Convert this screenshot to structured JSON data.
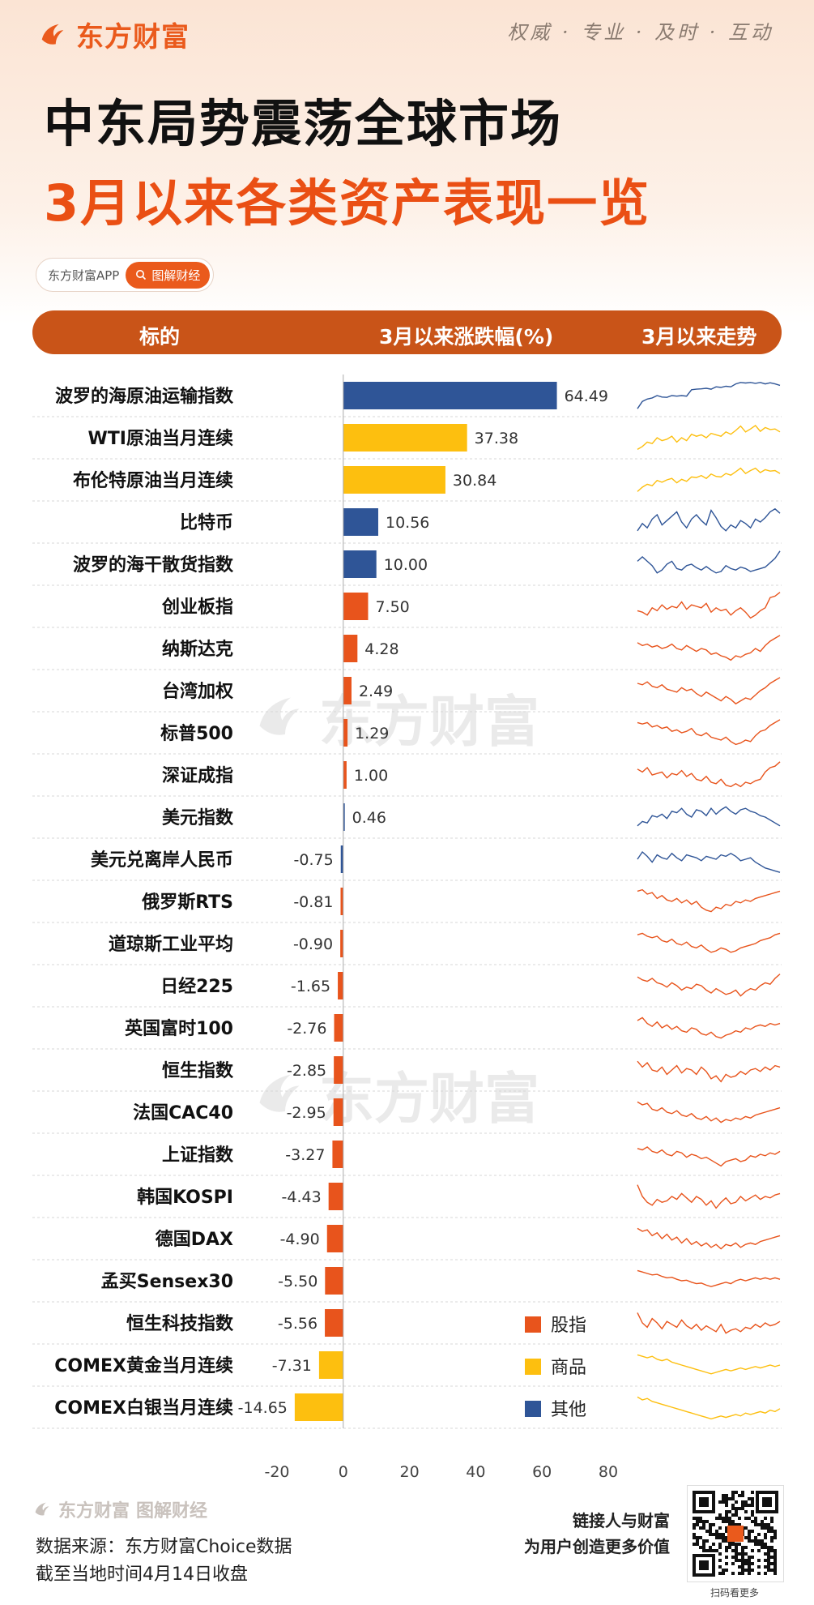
{
  "brand": {
    "logo_text": "东方财富",
    "slogan": "权威 · 专业 · 及时 · 互动"
  },
  "title": {
    "line1": "中东局势震荡全球市场",
    "line2": "3月以来各类资产表现一览"
  },
  "badge": {
    "app": "东方财富APP",
    "pill": "图解财经"
  },
  "header": {
    "col1": "标的",
    "col2": "3月以来涨跌幅(%)",
    "col3": "3月以来走势"
  },
  "watermark": "东方财富",
  "colors": {
    "stock": "#e8541c",
    "commodity": "#fdbf0f",
    "other": "#2f5597",
    "accent": "#ea5a1c"
  },
  "chart_data": {
    "type": "bar",
    "orientation": "horizontal",
    "categories": [
      "波罗的海原油运输指数",
      "WTI原油当月连续",
      "布伦特原油当月连续",
      "比特币",
      "波罗的海干散货指数",
      "创业板指",
      "纳斯达克",
      "台湾加权",
      "标普500",
      "深证成指",
      "美元指数",
      "美元兑离岸人民币",
      "俄罗斯RTS",
      "道琼斯工业平均",
      "日经225",
      "英国富时100",
      "恒生指数",
      "法国CAC40",
      "上证指数",
      "韩国KOSPI",
      "德国DAX",
      "孟买Sensex30",
      "恒生科技指数",
      "COMEX黄金当月连续",
      "COMEX白银当月连续"
    ],
    "values": [
      64.49,
      37.38,
      30.84,
      10.56,
      10.0,
      7.5,
      4.28,
      2.49,
      1.29,
      1.0,
      0.46,
      -0.75,
      -0.81,
      -0.9,
      -1.65,
      -2.76,
      -2.85,
      -2.95,
      -3.27,
      -4.43,
      -4.9,
      -5.5,
      -5.56,
      -7.31,
      -14.65
    ],
    "value_labels": [
      "64.49",
      "37.38",
      "30.84",
      "10.56",
      "10.00",
      "7.50",
      "4.28",
      "2.49",
      "1.29",
      "1.00",
      "0.46",
      "-0.75",
      "-0.81",
      "-0.90",
      "-1.65",
      "-2.76",
      "-2.85",
      "-2.95",
      "-3.27",
      "-4.43",
      "-4.90",
      "-5.50",
      "-5.56",
      "-7.31",
      "-14.65"
    ],
    "groups": [
      "other",
      "commodity",
      "commodity",
      "other",
      "other",
      "stock",
      "stock",
      "stock",
      "stock",
      "stock",
      "other",
      "other",
      "stock",
      "stock",
      "stock",
      "stock",
      "stock",
      "stock",
      "stock",
      "stock",
      "stock",
      "stock",
      "stock",
      "commodity",
      "commodity"
    ],
    "xlim": [
      -20,
      80
    ],
    "xticks": [
      "-20",
      "0",
      "20",
      "40",
      "60",
      "80"
    ],
    "legend": {
      "placement": "bottom-right",
      "items": [
        {
          "group": "stock",
          "label": "股指"
        },
        {
          "group": "commodity",
          "label": "商品"
        },
        {
          "group": "other",
          "label": "其他"
        }
      ]
    },
    "sparkline_shapes": [
      [
        0.05,
        0.3,
        0.38,
        0.42,
        0.5,
        0.45,
        0.44,
        0.5,
        0.48,
        0.5,
        0.48,
        0.7,
        0.72,
        0.73,
        0.75,
        0.72,
        0.8,
        0.78,
        0.82,
        0.8,
        0.9,
        0.95,
        0.93,
        0.95,
        0.92,
        0.95,
        0.9,
        0.94,
        0.9,
        0.85
      ],
      [
        0.1,
        0.2,
        0.35,
        0.3,
        0.5,
        0.4,
        0.45,
        0.55,
        0.35,
        0.5,
        0.4,
        0.62,
        0.55,
        0.6,
        0.5,
        0.65,
        0.6,
        0.55,
        0.7,
        0.62,
        0.75,
        0.9,
        0.7,
        0.8,
        0.92,
        0.72,
        0.85,
        0.78,
        0.8,
        0.7
      ],
      [
        0.1,
        0.25,
        0.35,
        0.3,
        0.48,
        0.42,
        0.5,
        0.55,
        0.4,
        0.52,
        0.45,
        0.6,
        0.58,
        0.65,
        0.55,
        0.7,
        0.62,
        0.6,
        0.72,
        0.66,
        0.78,
        0.9,
        0.72,
        0.82,
        0.9,
        0.75,
        0.85,
        0.8,
        0.82,
        0.72
      ],
      [
        0.2,
        0.45,
        0.3,
        0.6,
        0.75,
        0.4,
        0.55,
        0.7,
        0.85,
        0.5,
        0.3,
        0.6,
        0.75,
        0.55,
        0.4,
        0.9,
        0.65,
        0.35,
        0.2,
        0.4,
        0.3,
        0.55,
        0.45,
        0.3,
        0.6,
        0.5,
        0.65,
        0.85,
        0.95,
        0.8
      ],
      [
        0.6,
        0.75,
        0.6,
        0.45,
        0.2,
        0.3,
        0.5,
        0.6,
        0.35,
        0.3,
        0.45,
        0.5,
        0.38,
        0.3,
        0.42,
        0.3,
        0.2,
        0.25,
        0.45,
        0.35,
        0.3,
        0.4,
        0.35,
        0.25,
        0.3,
        0.35,
        0.4,
        0.55,
        0.7,
        0.95
      ],
      [
        0.35,
        0.3,
        0.2,
        0.45,
        0.35,
        0.55,
        0.4,
        0.5,
        0.45,
        0.65,
        0.4,
        0.55,
        0.5,
        0.45,
        0.6,
        0.3,
        0.45,
        0.35,
        0.4,
        0.2,
        0.35,
        0.45,
        0.3,
        0.1,
        0.2,
        0.35,
        0.45,
        0.8,
        0.85,
        0.98
      ],
      [
        0.7,
        0.6,
        0.65,
        0.55,
        0.6,
        0.5,
        0.55,
        0.65,
        0.5,
        0.45,
        0.6,
        0.5,
        0.4,
        0.5,
        0.45,
        0.3,
        0.35,
        0.25,
        0.2,
        0.1,
        0.25,
        0.2,
        0.3,
        0.35,
        0.5,
        0.4,
        0.6,
        0.75,
        0.85,
        0.95
      ],
      [
        0.75,
        0.7,
        0.8,
        0.65,
        0.6,
        0.7,
        0.55,
        0.5,
        0.45,
        0.6,
        0.5,
        0.55,
        0.4,
        0.3,
        0.45,
        0.35,
        0.25,
        0.15,
        0.3,
        0.2,
        0.05,
        0.15,
        0.25,
        0.2,
        0.35,
        0.5,
        0.6,
        0.75,
        0.85,
        0.95
      ],
      [
        0.85,
        0.8,
        0.85,
        0.7,
        0.75,
        0.65,
        0.7,
        0.55,
        0.6,
        0.5,
        0.55,
        0.65,
        0.45,
        0.4,
        0.5,
        0.35,
        0.3,
        0.25,
        0.35,
        0.2,
        0.1,
        0.15,
        0.25,
        0.2,
        0.4,
        0.55,
        0.6,
        0.75,
        0.85,
        0.95
      ],
      [
        0.7,
        0.6,
        0.75,
        0.5,
        0.55,
        0.6,
        0.4,
        0.55,
        0.5,
        0.65,
        0.45,
        0.55,
        0.35,
        0.3,
        0.45,
        0.25,
        0.2,
        0.35,
        0.15,
        0.1,
        0.2,
        0.1,
        0.25,
        0.2,
        0.3,
        0.35,
        0.6,
        0.75,
        0.8,
        0.95
      ],
      [
        0.2,
        0.35,
        0.3,
        0.55,
        0.5,
        0.6,
        0.45,
        0.7,
        0.65,
        0.8,
        0.6,
        0.5,
        0.75,
        0.7,
        0.55,
        0.8,
        0.6,
        0.75,
        0.85,
        0.7,
        0.6,
        0.75,
        0.8,
        0.7,
        0.65,
        0.55,
        0.5,
        0.4,
        0.3,
        0.2
      ],
      [
        0.5,
        0.75,
        0.6,
        0.4,
        0.65,
        0.55,
        0.5,
        0.7,
        0.55,
        0.45,
        0.65,
        0.6,
        0.55,
        0.45,
        0.6,
        0.55,
        0.5,
        0.65,
        0.6,
        0.7,
        0.6,
        0.45,
        0.5,
        0.55,
        0.4,
        0.3,
        0.2,
        0.15,
        0.1,
        0.05
      ],
      [
        0.85,
        0.9,
        0.75,
        0.8,
        0.6,
        0.7,
        0.55,
        0.5,
        0.6,
        0.45,
        0.55,
        0.4,
        0.5,
        0.3,
        0.2,
        0.15,
        0.3,
        0.25,
        0.4,
        0.35,
        0.5,
        0.45,
        0.55,
        0.5,
        0.6,
        0.65,
        0.7,
        0.75,
        0.8,
        0.85
      ],
      [
        0.8,
        0.85,
        0.75,
        0.7,
        0.75,
        0.6,
        0.55,
        0.65,
        0.5,
        0.45,
        0.55,
        0.4,
        0.35,
        0.45,
        0.3,
        0.2,
        0.25,
        0.35,
        0.3,
        0.2,
        0.25,
        0.35,
        0.4,
        0.45,
        0.5,
        0.6,
        0.65,
        0.7,
        0.8,
        0.85
      ],
      [
        0.8,
        0.7,
        0.65,
        0.75,
        0.6,
        0.55,
        0.45,
        0.6,
        0.5,
        0.35,
        0.45,
        0.4,
        0.55,
        0.5,
        0.35,
        0.25,
        0.4,
        0.3,
        0.2,
        0.25,
        0.35,
        0.15,
        0.3,
        0.4,
        0.35,
        0.5,
        0.6,
        0.55,
        0.75,
        0.9
      ],
      [
        0.75,
        0.85,
        0.65,
        0.55,
        0.7,
        0.5,
        0.6,
        0.45,
        0.55,
        0.4,
        0.35,
        0.5,
        0.45,
        0.3,
        0.25,
        0.35,
        0.2,
        0.15,
        0.25,
        0.3,
        0.4,
        0.35,
        0.5,
        0.45,
        0.55,
        0.6,
        0.55,
        0.65,
        0.6,
        0.65
      ],
      [
        0.8,
        0.6,
        0.75,
        0.5,
        0.45,
        0.6,
        0.35,
        0.5,
        0.65,
        0.4,
        0.55,
        0.5,
        0.35,
        0.6,
        0.45,
        0.2,
        0.3,
        0.1,
        0.35,
        0.25,
        0.3,
        0.45,
        0.35,
        0.5,
        0.55,
        0.45,
        0.6,
        0.5,
        0.65,
        0.6
      ],
      [
        0.85,
        0.75,
        0.8,
        0.6,
        0.55,
        0.65,
        0.5,
        0.45,
        0.55,
        0.4,
        0.35,
        0.45,
        0.3,
        0.25,
        0.35,
        0.2,
        0.3,
        0.15,
        0.25,
        0.2,
        0.3,
        0.25,
        0.35,
        0.3,
        0.4,
        0.45,
        0.5,
        0.55,
        0.6,
        0.65
      ],
      [
        0.7,
        0.65,
        0.75,
        0.6,
        0.55,
        0.65,
        0.5,
        0.45,
        0.6,
        0.55,
        0.4,
        0.5,
        0.45,
        0.35,
        0.4,
        0.3,
        0.2,
        0.1,
        0.25,
        0.3,
        0.35,
        0.25,
        0.3,
        0.45,
        0.4,
        0.5,
        0.45,
        0.55,
        0.5,
        0.6
      ],
      [
        0.9,
        0.5,
        0.3,
        0.2,
        0.4,
        0.3,
        0.35,
        0.5,
        0.4,
        0.6,
        0.45,
        0.3,
        0.5,
        0.4,
        0.2,
        0.35,
        0.1,
        0.3,
        0.45,
        0.25,
        0.3,
        0.5,
        0.35,
        0.45,
        0.55,
        0.4,
        0.5,
        0.45,
        0.55,
        0.6
      ],
      [
        0.85,
        0.75,
        0.8,
        0.6,
        0.7,
        0.5,
        0.65,
        0.45,
        0.55,
        0.35,
        0.5,
        0.3,
        0.4,
        0.25,
        0.35,
        0.2,
        0.3,
        0.15,
        0.3,
        0.25,
        0.35,
        0.2,
        0.3,
        0.35,
        0.3,
        0.4,
        0.45,
        0.5,
        0.55,
        0.6
      ],
      [
        0.85,
        0.8,
        0.75,
        0.7,
        0.72,
        0.65,
        0.6,
        0.62,
        0.55,
        0.5,
        0.52,
        0.45,
        0.4,
        0.42,
        0.35,
        0.3,
        0.35,
        0.4,
        0.45,
        0.4,
        0.5,
        0.55,
        0.5,
        0.55,
        0.6,
        0.55,
        0.6,
        0.55,
        0.6,
        0.55
      ],
      [
        0.85,
        0.5,
        0.35,
        0.65,
        0.5,
        0.3,
        0.55,
        0.45,
        0.35,
        0.6,
        0.4,
        0.3,
        0.45,
        0.25,
        0.4,
        0.3,
        0.2,
        0.45,
        0.15,
        0.25,
        0.3,
        0.2,
        0.35,
        0.3,
        0.45,
        0.35,
        0.5,
        0.4,
        0.45,
        0.55
      ],
      [
        0.85,
        0.8,
        0.75,
        0.8,
        0.7,
        0.65,
        0.7,
        0.6,
        0.55,
        0.5,
        0.45,
        0.4,
        0.35,
        0.3,
        0.25,
        0.2,
        0.25,
        0.3,
        0.35,
        0.3,
        0.35,
        0.4,
        0.35,
        0.4,
        0.45,
        0.4,
        0.45,
        0.5,
        0.45,
        0.5
      ],
      [
        0.85,
        0.75,
        0.8,
        0.7,
        0.65,
        0.6,
        0.55,
        0.5,
        0.45,
        0.4,
        0.35,
        0.3,
        0.25,
        0.2,
        0.15,
        0.1,
        0.15,
        0.2,
        0.15,
        0.2,
        0.25,
        0.2,
        0.3,
        0.25,
        0.3,
        0.35,
        0.3,
        0.4,
        0.35,
        0.45
      ]
    ]
  },
  "footer": {
    "logo_text": "东方财富",
    "logo_sub": "图解财经",
    "source": "数据来源：东方财富Choice数据",
    "cutoff": "截至当地时间4月14日收盘",
    "promo1": "链接人与财富",
    "promo2": "为用户创造更多价值",
    "qr_caption": "扫码看更多"
  }
}
